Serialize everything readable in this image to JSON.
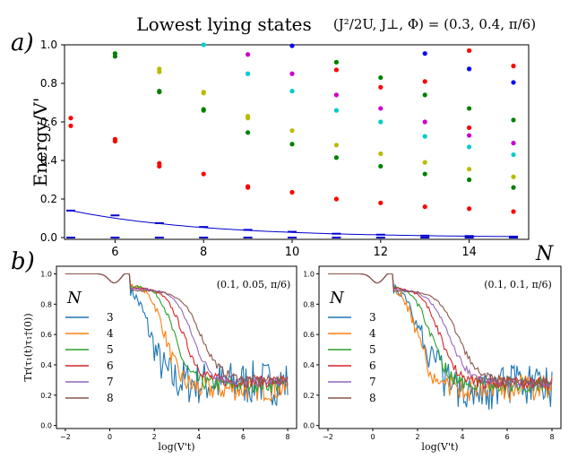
{
  "panel_labels": [
    "a)",
    "b)"
  ],
  "chart_data": [
    {
      "type": "scatter",
      "title": "Lowest lying states",
      "params_label": "(J²/2U, J⊥, Φ) = (0.3, 0.4, π/6)",
      "ylabel": "Energy/V'",
      "xlabel": "N",
      "xlim": [
        4.5,
        15.5
      ],
      "ylim": [
        0.0,
        1.0
      ],
      "xticks": [
        6,
        8,
        10,
        12,
        14
      ],
      "yticks": [
        0.0,
        0.2,
        0.4,
        0.6,
        0.8,
        1.0
      ],
      "xtick_labels": [
        "6",
        "8",
        "10",
        "12",
        "14"
      ],
      "ytick_labels": [
        "0.0",
        "0.2",
        "0.4",
        "0.6",
        "0.8",
        "1.0"
      ],
      "ground_state_markers": {
        "color": "#0000cc",
        "x": [
          5,
          6,
          7,
          8,
          9,
          10,
          11,
          12,
          13,
          14,
          15
        ],
        "y": [
          0,
          0,
          0,
          0,
          0,
          0,
          0,
          0,
          0,
          0,
          0
        ]
      },
      "second_level_markers": {
        "color": "#0000cc",
        "x": [
          5,
          6,
          7,
          8,
          9,
          10,
          11,
          12,
          13,
          14,
          15
        ],
        "y": [
          0.14,
          0.115,
          0.075,
          0.055,
          0.04,
          0.03,
          0.02,
          0.015,
          0.01,
          0.008,
          0.005
        ]
      },
      "fit_curve": {
        "color": "#0000cc",
        "x_range": [
          5,
          15
        ],
        "y0": 0.14,
        "decay": 0.33
      },
      "series": [
        {
          "color": "#ff0000",
          "x": [
            5,
            5,
            6,
            6,
            7,
            7,
            8,
            9,
            9,
            10,
            11,
            12,
            13,
            14,
            15,
            14,
            15,
            11,
            12,
            13,
            14
          ],
          "y": [
            0.62,
            0.58,
            0.51,
            0.5,
            0.385,
            0.37,
            0.33,
            0.265,
            0.26,
            0.235,
            0.2,
            0.18,
            0.16,
            0.15,
            0.135,
            0.97,
            0.89,
            0.87,
            0.78,
            0.81,
            0.57
          ]
        },
        {
          "color": "#008000",
          "x": [
            6,
            6,
            7,
            7,
            8,
            8,
            9,
            10,
            11,
            11,
            12,
            12,
            13,
            13,
            14,
            14,
            15,
            15
          ],
          "y": [
            0.955,
            0.94,
            0.76,
            0.755,
            0.665,
            0.66,
            0.545,
            0.485,
            0.91,
            0.415,
            0.83,
            0.37,
            0.74,
            0.33,
            0.67,
            0.3,
            0.61,
            0.26
          ]
        },
        {
          "color": "#bbbb00",
          "x": [
            7,
            7,
            8,
            8,
            9,
            9,
            10,
            11,
            12,
            13,
            14,
            15
          ],
          "y": [
            0.875,
            0.86,
            0.755,
            0.75,
            0.63,
            0.62,
            0.555,
            0.48,
            0.435,
            0.39,
            0.355,
            0.315
          ]
        },
        {
          "color": "#00cccc",
          "x": [
            8,
            9,
            10,
            11,
            12,
            13,
            14,
            15
          ],
          "y": [
            1.0,
            0.85,
            0.76,
            0.66,
            0.6,
            0.525,
            0.47,
            0.43
          ]
        },
        {
          "color": "#cc00cc",
          "x": [
            9,
            10,
            11,
            12,
            13,
            14,
            15
          ],
          "y": [
            0.95,
            0.85,
            0.74,
            0.67,
            0.6,
            0.53,
            0.49
          ]
        },
        {
          "color": "#0000ff",
          "x": [
            10,
            13,
            14,
            15
          ],
          "y": [
            0.995,
            0.955,
            0.875,
            0.805
          ]
        }
      ]
    },
    {
      "type": "line",
      "annotation": "(0.1, 0.05, π/6)",
      "ylabel": "Tr(τ₁(t)τ₁†(0))",
      "xlabel": "log(V't)",
      "xlim": [
        -2.4,
        8.4
      ],
      "ylim": [
        -0.02,
        1.05
      ],
      "xticks": [
        -2,
        0,
        2,
        4,
        6,
        8
      ],
      "yticks": [
        0.0,
        0.2,
        0.4,
        0.6,
        0.8,
        1.0
      ],
      "xtick_labels": [
        "−2",
        "0",
        "2",
        "4",
        "6",
        "8"
      ],
      "ytick_labels": [
        "0.0",
        "0.2",
        "0.4",
        "0.6",
        "0.8",
        "1.0"
      ],
      "legend_title": "N",
      "legend_location": "left",
      "series": [
        {
          "name": "3",
          "color": "#1f77b4",
          "decay_center": 1.8,
          "decay_width": 0.35,
          "plateau": 0.28,
          "noise": 0.15
        },
        {
          "name": "4",
          "color": "#ff7f0e",
          "decay_center": 2.5,
          "decay_width": 0.35,
          "plateau": 0.24,
          "noise": 0.08
        },
        {
          "name": "5",
          "color": "#2ca02c",
          "decay_center": 2.9,
          "decay_width": 0.35,
          "plateau": 0.27,
          "noise": 0.05
        },
        {
          "name": "6",
          "color": "#d62728",
          "decay_center": 3.3,
          "decay_width": 0.4,
          "plateau": 0.29,
          "noise": 0.04
        },
        {
          "name": "7",
          "color": "#9467bd",
          "decay_center": 3.7,
          "decay_width": 0.4,
          "plateau": 0.29,
          "noise": 0.03
        },
        {
          "name": "8",
          "color": "#8c564b",
          "decay_center": 4.1,
          "decay_width": 0.45,
          "plateau": 0.3,
          "noise": 0.03
        }
      ]
    },
    {
      "type": "line",
      "annotation": "(0.1, 0.1, π/6)",
      "ylabel": "",
      "xlabel": "log(V't)",
      "xlim": [
        -2.4,
        8.4
      ],
      "ylim": [
        -0.02,
        1.05
      ],
      "xticks": [
        -2,
        0,
        2,
        4,
        6,
        8
      ],
      "yticks": [
        0.0,
        0.2,
        0.4,
        0.6,
        0.8,
        1.0
      ],
      "xtick_labels": [
        "−2",
        "0",
        "2",
        "4",
        "6",
        "8"
      ],
      "ytick_labels": [
        "0.0",
        "0.2",
        "0.4",
        "0.6",
        "0.8",
        "1.0"
      ],
      "legend_title": "N",
      "legend_location": "left",
      "series": [
        {
          "name": "3",
          "color": "#1f77b4",
          "decay_center": 2.2,
          "decay_width": 0.45,
          "plateau": 0.25,
          "noise": 0.15
        },
        {
          "name": "4",
          "color": "#ff7f0e",
          "decay_center": 2.0,
          "decay_width": 0.35,
          "plateau": 0.25,
          "noise": 0.09
        },
        {
          "name": "5",
          "color": "#2ca02c",
          "decay_center": 2.6,
          "decay_width": 0.4,
          "plateau": 0.27,
          "noise": 0.05
        },
        {
          "name": "6",
          "color": "#d62728",
          "decay_center": 3.0,
          "decay_width": 0.4,
          "plateau": 0.28,
          "noise": 0.04
        },
        {
          "name": "7",
          "color": "#9467bd",
          "decay_center": 3.4,
          "decay_width": 0.45,
          "plateau": 0.28,
          "noise": 0.03
        },
        {
          "name": "8",
          "color": "#8c564b",
          "decay_center": 3.8,
          "decay_width": 0.45,
          "plateau": 0.29,
          "noise": 0.03
        }
      ]
    }
  ]
}
